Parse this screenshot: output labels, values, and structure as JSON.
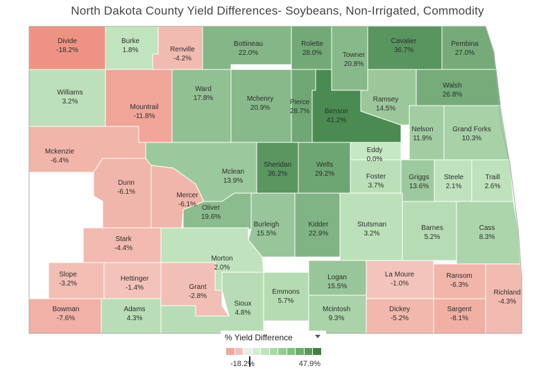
{
  "title": "North Dakota County Yield Differences- Soybeans, Non-Irrigated, Commodity",
  "legend": {
    "title": "% Yield Difference",
    "min_label": "-18.2%",
    "max_label": "47.9%",
    "min": -18.2,
    "max": 47.9,
    "colors": [
      "#f0a79b",
      "#f5c0b8",
      "#e9eee9",
      "#d3ecd2",
      "#bfe4bd",
      "#a9d9a7",
      "#93ce91",
      "#7dc07c",
      "#69b06a",
      "#559c59",
      "#3f8048"
    ]
  },
  "counties": [
    {
      "name": "Divide",
      "value": "-18.2%",
      "v": -18.2
    },
    {
      "name": "Burke",
      "value": "1.8%",
      "v": 1.8
    },
    {
      "name": "Renville",
      "value": "-4.2%",
      "v": -4.2
    },
    {
      "name": "Bottineau",
      "value": "22.0%",
      "v": 22.0
    },
    {
      "name": "Rolette",
      "value": "28.0%",
      "v": 28.0
    },
    {
      "name": "Towner",
      "value": "20.8%",
      "v": 20.8
    },
    {
      "name": "Cavalier",
      "value": "36.7%",
      "v": 36.7
    },
    {
      "name": "Pembina",
      "value": "27.0%",
      "v": 27.0
    },
    {
      "name": "Williams",
      "value": "3.2%",
      "v": 3.2
    },
    {
      "name": "Mountrail",
      "value": "-11.8%",
      "v": -11.8
    },
    {
      "name": "Ward",
      "value": "17.8%",
      "v": 17.8
    },
    {
      "name": "Mchenry",
      "value": "20.9%",
      "v": 20.9
    },
    {
      "name": "Pierce",
      "value": "28.7%",
      "v": 28.7
    },
    {
      "name": "Benson",
      "value": "41.2%",
      "v": 41.2
    },
    {
      "name": "Ramsey",
      "value": "14.5%",
      "v": 14.5
    },
    {
      "name": "Walsh",
      "value": "26.8%",
      "v": 26.8
    },
    {
      "name": "Nelson",
      "value": "11.9%",
      "v": 11.9
    },
    {
      "name": "Grand Forks",
      "value": "10.3%",
      "v": 10.3
    },
    {
      "name": "Mckenzie",
      "value": "-6.4%",
      "v": -6.4
    },
    {
      "name": "Eddy",
      "value": "0.0%",
      "v": 0.0
    },
    {
      "name": "Mclean",
      "value": "13.9%",
      "v": 13.9
    },
    {
      "name": "Sheridan",
      "value": "36.2%",
      "v": 36.2
    },
    {
      "name": "Wells",
      "value": "29.2%",
      "v": 29.2
    },
    {
      "name": "Dunn",
      "value": "-6.1%",
      "v": -6.1
    },
    {
      "name": "Foster",
      "value": "3.7%",
      "v": 3.7
    },
    {
      "name": "Griggs",
      "value": "13.6%",
      "v": 13.6
    },
    {
      "name": "Steele",
      "value": "2.1%",
      "v": 2.1
    },
    {
      "name": "Traill",
      "value": "2.6%",
      "v": 2.6
    },
    {
      "name": "Mercer",
      "value": "-6.1%",
      "v": -6.1
    },
    {
      "name": "Oliver",
      "value": "19.6%",
      "v": 19.6
    },
    {
      "name": "Burleigh",
      "value": "15.5%",
      "v": 15.5
    },
    {
      "name": "Kidder",
      "value": "22.9%",
      "v": 22.9
    },
    {
      "name": "Stutsman",
      "value": "3.2%",
      "v": 3.2
    },
    {
      "name": "Barnes",
      "value": "5.2%",
      "v": 5.2
    },
    {
      "name": "Cass",
      "value": "8.3%",
      "v": 8.3
    },
    {
      "name": "Stark",
      "value": "-4.4%",
      "v": -4.4
    },
    {
      "name": "Morton",
      "value": "2.0%",
      "v": 2.0
    },
    {
      "name": "Slope",
      "value": "-3.2%",
      "v": -3.2
    },
    {
      "name": "Hettinger",
      "value": "-1.4%",
      "v": -1.4
    },
    {
      "name": "Grant",
      "value": "-2.8%",
      "v": -2.8
    },
    {
      "name": "Emmons",
      "value": "5.7%",
      "v": 5.7
    },
    {
      "name": "Logan",
      "value": "15.5%",
      "v": 15.5
    },
    {
      "name": "La Moure",
      "value": "-1.0%",
      "v": -1.0
    },
    {
      "name": "Ransom",
      "value": "-6.3%",
      "v": -6.3
    },
    {
      "name": "Richland",
      "value": "-4.3%",
      "v": -4.3
    },
    {
      "name": "Bowman",
      "value": "-7.6%",
      "v": -7.6
    },
    {
      "name": "Adams",
      "value": "4.3%",
      "v": 4.3
    },
    {
      "name": "Sioux",
      "value": "4.8%",
      "v": 4.8
    },
    {
      "name": "Mcintosh",
      "value": "9.3%",
      "v": 9.3
    },
    {
      "name": "Dickey",
      "value": "-5.2%",
      "v": -5.2
    },
    {
      "name": "Sargent",
      "value": "-8.1%",
      "v": -8.1
    }
  ]
}
